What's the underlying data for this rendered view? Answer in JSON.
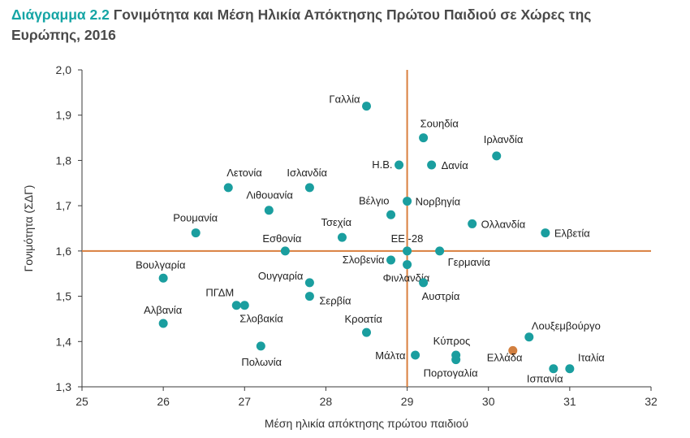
{
  "title_lead": "Διάγραμμα 2.2",
  "title_rest": "Γονιμότητα και Μέση Ηλικία Απόκτησης Πρώτου Παιδιού σε Χώρες της Ευρώπης, 2016",
  "colors": {
    "title_lead": "#16a5a5",
    "points": "#1a9e9f",
    "highlight": "#d27f3f",
    "reference_lines": "#d97f3e",
    "axes": "#3a3a3a"
  },
  "chart_data": {
    "type": "scatter",
    "xlabel": "Μέση ηλικία απόκτησης πρώτου παιδιού",
    "ylabel": "Γονιμότητα (ΣΔΓ)",
    "xlim": [
      25,
      32
    ],
    "ylim": [
      1.3,
      2.0
    ],
    "xticks": [
      "25",
      "26",
      "27",
      "28",
      "29",
      "30",
      "31",
      "32"
    ],
    "yticks": [
      "1,3",
      "1,4",
      "1,5",
      "1,6",
      "1,7",
      "1,8",
      "1,9",
      "2,0"
    ],
    "reference_lines": {
      "x": 29.0,
      "y": 1.6
    },
    "grid": false,
    "points": [
      {
        "label": "Γαλλία",
        "x": 28.5,
        "y": 1.92
      },
      {
        "label": "Σουηδία",
        "x": 29.2,
        "y": 1.85
      },
      {
        "label": "Ιρλανδία",
        "x": 30.1,
        "y": 1.81
      },
      {
        "label": "Η.Β.",
        "x": 28.9,
        "y": 1.79
      },
      {
        "label": "Δανία",
        "x": 29.3,
        "y": 1.79
      },
      {
        "label": "Λετονία",
        "x": 26.8,
        "y": 1.74
      },
      {
        "label": "Ισλανδία",
        "x": 27.8,
        "y": 1.74
      },
      {
        "label": "Λιθουανία",
        "x": 27.3,
        "y": 1.69
      },
      {
        "label": "Βέλγιο",
        "x": 28.8,
        "y": 1.68
      },
      {
        "label": "Νορβηγία",
        "x": 29.0,
        "y": 1.71
      },
      {
        "label": "Ολλανδία",
        "x": 29.8,
        "y": 1.66
      },
      {
        "label": "Ελβετία",
        "x": 30.7,
        "y": 1.64
      },
      {
        "label": "Ρουμανία",
        "x": 26.4,
        "y": 1.64
      },
      {
        "label": "Τσεχία",
        "x": 28.2,
        "y": 1.63
      },
      {
        "label": "Εσθονία",
        "x": 27.5,
        "y": 1.6
      },
      {
        "label": "ΕΕ -28",
        "x": 29.0,
        "y": 1.6
      },
      {
        "label": "Γερμανία",
        "x": 29.4,
        "y": 1.6
      },
      {
        "label": "Σλοβενία",
        "x": 28.8,
        "y": 1.58
      },
      {
        "label": "Φινλανδία",
        "x": 29.0,
        "y": 1.57
      },
      {
        "label": "Βουλγαρία",
        "x": 26.0,
        "y": 1.54
      },
      {
        "label": "Ουγγαρία",
        "x": 27.8,
        "y": 1.53
      },
      {
        "label": "Αυστρία",
        "x": 29.2,
        "y": 1.53
      },
      {
        "label": "Σερβία",
        "x": 27.8,
        "y": 1.5
      },
      {
        "label": "ΠΓΔΜ",
        "x": 26.9,
        "y": 1.48
      },
      {
        "label": "Σλοβακία",
        "x": 27.0,
        "y": 1.48
      },
      {
        "label": "Αλβανία",
        "x": 26.0,
        "y": 1.44
      },
      {
        "label": "Κροατία",
        "x": 28.5,
        "y": 1.42
      },
      {
        "label": "Λουξεμβούργο",
        "x": 30.5,
        "y": 1.41
      },
      {
        "label": "Πολωνία",
        "x": 27.2,
        "y": 1.39
      },
      {
        "label": "Μάλτα",
        "x": 29.1,
        "y": 1.37
      },
      {
        "label": "Κύπρος",
        "x": 29.6,
        "y": 1.37
      },
      {
        "label": "Πορτογαλία",
        "x": 29.6,
        "y": 1.36
      },
      {
        "label": "Ελλάδα",
        "x": 30.3,
        "y": 1.38,
        "highlight": true
      },
      {
        "label": "Ισπανία",
        "x": 30.8,
        "y": 1.34
      },
      {
        "label": "Ιταλία",
        "x": 31.0,
        "y": 1.34
      }
    ]
  }
}
